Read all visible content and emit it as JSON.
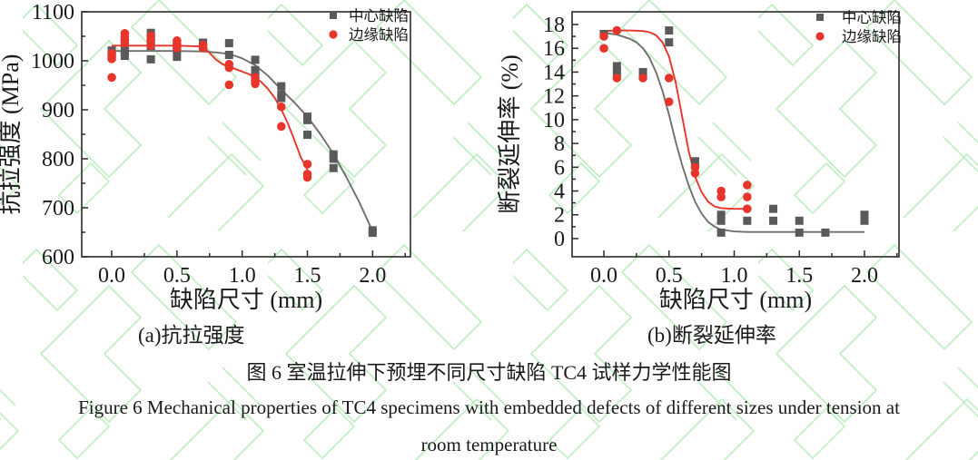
{
  "watermark": {
    "color": "#b7ecba"
  },
  "captions": {
    "sub_a": "(a)抗拉强度",
    "sub_b": "(b)断裂延伸率",
    "figure_cn": "图 6 室温拉伸下预埋不同尺寸缺陷 TC4 试样力学性能图",
    "figure_en_line1": "Figure 6 Mechanical properties of TC4 specimens with embedded defects of different sizes under tension at",
    "figure_en_line2": "room temperature"
  },
  "legend_labels": {
    "center": "中心缺陷",
    "edge": "边缘缺陷"
  },
  "colors": {
    "center": "#5a5a5a",
    "edge": "#e8352c",
    "center_curve": "#6f6f6f",
    "edge_curve": "#e8352c",
    "axis": "#2b2b2b"
  },
  "chart_data": [
    {
      "id": "a",
      "type": "scatter",
      "subtitle": "(a)抗拉强度",
      "xlabel": "缺陷尺寸 (mm)",
      "ylabel": "抗拉强度 (MPa)",
      "xlim": [
        -0.23,
        2.29
      ],
      "ylim": [
        600,
        1100
      ],
      "xticks": [
        0.0,
        0.5,
        1.0,
        1.5,
        2.0
      ],
      "xtick_labels": [
        "0.0",
        "0.5",
        "1.0",
        "1.5",
        "2.0"
      ],
      "yticks": [
        600,
        700,
        800,
        900,
        1000,
        1100
      ],
      "ytick_labels": [
        "600",
        "700",
        "800",
        "900",
        "1000",
        "1100"
      ],
      "xminor": [
        0.25,
        0.75,
        1.25,
        1.75,
        2.25
      ],
      "yminor": [
        650,
        750,
        850,
        950,
        1050
      ],
      "legend_position": "top-right",
      "series": [
        {
          "name": "中心缺陷",
          "marker": "square",
          "color": "#5a5a5a",
          "points": [
            [
              0,
              1008
            ],
            [
              0,
              1015
            ],
            [
              0,
              1021
            ],
            [
              0.1,
              1010
            ],
            [
              0.1,
              1017
            ],
            [
              0.1,
              1024
            ],
            [
              0.3,
              1003
            ],
            [
              0.3,
              1030
            ],
            [
              0.3,
              1042
            ],
            [
              0.3,
              1057
            ],
            [
              0.5,
              1008
            ],
            [
              0.5,
              1022
            ],
            [
              0.5,
              1031
            ],
            [
              0.7,
              1029
            ],
            [
              0.7,
              1037
            ],
            [
              0.9,
              1012
            ],
            [
              0.9,
              1036
            ],
            [
              1.1,
              974
            ],
            [
              1.1,
              981
            ],
            [
              1.1,
              1002
            ],
            [
              1.3,
              924
            ],
            [
              1.3,
              931
            ],
            [
              1.3,
              948
            ],
            [
              1.5,
              849
            ],
            [
              1.5,
              879
            ],
            [
              1.5,
              886
            ],
            [
              1.7,
              781
            ],
            [
              1.7,
              800
            ],
            [
              1.7,
              809
            ],
            [
              2.0,
              649
            ],
            [
              2.0,
              654
            ]
          ]
        },
        {
          "name": "边缘缺陷",
          "marker": "circle",
          "color": "#e8352c",
          "points": [
            [
              0,
              966
            ],
            [
              0,
              1004
            ],
            [
              0,
              1009
            ],
            [
              0,
              1015
            ],
            [
              0.1,
              1036
            ],
            [
              0.1,
              1043
            ],
            [
              0.1,
              1049
            ],
            [
              0.1,
              1056
            ],
            [
              0.3,
              1031
            ],
            [
              0.3,
              1043
            ],
            [
              0.3,
              1051
            ],
            [
              0.5,
              1026
            ],
            [
              0.5,
              1033
            ],
            [
              0.5,
              1041
            ],
            [
              0.7,
              1026
            ],
            [
              0.7,
              1032
            ],
            [
              0.9,
              951
            ],
            [
              0.9,
              986
            ],
            [
              0.9,
              993
            ],
            [
              1.1,
              953
            ],
            [
              1.1,
              959
            ],
            [
              1.1,
              966
            ],
            [
              1.3,
              866
            ],
            [
              1.3,
              906
            ],
            [
              1.5,
              762
            ],
            [
              1.5,
              769
            ],
            [
              1.5,
              789
            ]
          ]
        }
      ],
      "fit_curves": [
        {
          "series": "中心缺陷",
          "color": "#6f6f6f",
          "points": [
            [
              0,
              1020
            ],
            [
              0.3,
              1020
            ],
            [
              0.5,
              1020
            ],
            [
              0.7,
              1019
            ],
            [
              0.8,
              1017
            ],
            [
              0.9,
              1014
            ],
            [
              1.0,
              1005
            ],
            [
              1.1,
              991
            ],
            [
              1.2,
              969
            ],
            [
              1.3,
              941
            ],
            [
              1.4,
              915
            ],
            [
              1.5,
              886
            ],
            [
              1.6,
              850
            ],
            [
              1.7,
              810
            ],
            [
              1.8,
              762
            ],
            [
              1.9,
              710
            ],
            [
              2.0,
              652
            ]
          ]
        },
        {
          "series": "边缘缺陷",
          "color": "#e8352c",
          "points": [
            [
              0,
              1031
            ],
            [
              0.3,
              1031
            ],
            [
              0.5,
              1031
            ],
            [
              0.7,
              1029
            ],
            [
              0.75,
              1016
            ],
            [
              0.8,
              1002
            ],
            [
              0.85,
              993
            ],
            [
              0.9,
              988
            ],
            [
              0.95,
              983
            ],
            [
              1.0,
              978
            ],
            [
              1.05,
              973
            ],
            [
              1.1,
              966
            ],
            [
              1.15,
              956
            ],
            [
              1.2,
              942
            ],
            [
              1.25,
              924
            ],
            [
              1.3,
              901
            ],
            [
              1.35,
              872
            ],
            [
              1.4,
              838
            ],
            [
              1.45,
              803
            ],
            [
              1.5,
              778
            ]
          ]
        }
      ]
    },
    {
      "id": "b",
      "type": "scatter",
      "subtitle": "(b)断裂延伸率",
      "xlabel": "缺陷尺寸 (mm)",
      "ylabel": "断裂延伸率 (%)",
      "xlim": [
        -0.244,
        2.265
      ],
      "ylim": [
        -1.53,
        19.07
      ],
      "xticks": [
        0.0,
        0.5,
        1.0,
        1.5,
        2.0
      ],
      "xtick_labels": [
        "0.0",
        "0.5",
        "1.0",
        "1.5",
        "2.0"
      ],
      "yticks": [
        0,
        2,
        4,
        6,
        8,
        10,
        12,
        14,
        16,
        18
      ],
      "ytick_labels": [
        "0",
        "2",
        "4",
        "6",
        "8",
        "10",
        "12",
        "14",
        "16",
        "18"
      ],
      "xminor": [
        0.25,
        0.75,
        1.25,
        1.75,
        2.25
      ],
      "yminor": [
        1,
        3,
        5,
        7,
        9,
        11,
        13,
        15,
        17
      ],
      "legend_position": "top-right",
      "series": [
        {
          "name": "中心缺陷",
          "marker": "square",
          "color": "#5a5a5a",
          "points": [
            [
              0,
              17.2
            ],
            [
              0.1,
              14.0
            ],
            [
              0.1,
              14.5
            ],
            [
              0.3,
              14.0
            ],
            [
              0.5,
              16.5
            ],
            [
              0.5,
              17.5
            ],
            [
              0.7,
              6.5
            ],
            [
              0.9,
              0.5
            ],
            [
              0.9,
              1.5
            ],
            [
              0.9,
              2.0
            ],
            [
              1.1,
              1.5
            ],
            [
              1.3,
              1.5
            ],
            [
              1.3,
              2.5
            ],
            [
              1.5,
              0.5
            ],
            [
              1.5,
              1.5
            ],
            [
              1.7,
              0.5
            ],
            [
              2.0,
              1.5
            ],
            [
              2.0,
              2.0
            ]
          ]
        },
        {
          "name": "边缘缺陷",
          "marker": "circle",
          "color": "#e8352c",
          "points": [
            [
              0,
              16.0
            ],
            [
              0,
              17.0
            ],
            [
              0.1,
              13.5
            ],
            [
              0.1,
              17.5
            ],
            [
              0.3,
              13.5
            ],
            [
              0.5,
              11.5
            ],
            [
              0.5,
              13.5
            ],
            [
              0.7,
              5.5
            ],
            [
              0.7,
              6.0
            ],
            [
              0.9,
              3.5
            ],
            [
              0.9,
              4.0
            ],
            [
              1.1,
              2.5
            ],
            [
              1.1,
              3.5
            ],
            [
              1.1,
              4.5
            ]
          ]
        }
      ],
      "fit_curves": [
        {
          "series": "中心缺陷",
          "color": "#6f6f6f",
          "points": [
            [
              0,
              17.3
            ],
            [
              0.1,
              17.15
            ],
            [
              0.2,
              16.8
            ],
            [
              0.25,
              16.5
            ],
            [
              0.3,
              16.0
            ],
            [
              0.35,
              15.2
            ],
            [
              0.4,
              14.0
            ],
            [
              0.45,
              12.4
            ],
            [
              0.5,
              10.4
            ],
            [
              0.55,
              8.2
            ],
            [
              0.6,
              6.2
            ],
            [
              0.65,
              4.5
            ],
            [
              0.7,
              3.1
            ],
            [
              0.75,
              2.1
            ],
            [
              0.8,
              1.4
            ],
            [
              0.85,
              1.0
            ],
            [
              0.9,
              0.75
            ],
            [
              1.0,
              0.6
            ],
            [
              1.1,
              0.55
            ],
            [
              1.3,
              0.55
            ],
            [
              1.6,
              0.55
            ],
            [
              2.0,
              0.55
            ]
          ]
        },
        {
          "series": "边缘缺陷",
          "color": "#e8352c",
          "points": [
            [
              0,
              17.45
            ],
            [
              0.1,
              17.5
            ],
            [
              0.2,
              17.5
            ],
            [
              0.3,
              17.45
            ],
            [
              0.35,
              17.35
            ],
            [
              0.4,
              17.1
            ],
            [
              0.45,
              16.5
            ],
            [
              0.5,
              15.3
            ],
            [
              0.55,
              13.2
            ],
            [
              0.6,
              10.3
            ],
            [
              0.65,
              7.4
            ],
            [
              0.7,
              5.2
            ],
            [
              0.75,
              3.9
            ],
            [
              0.8,
              3.1
            ],
            [
              0.85,
              2.7
            ],
            [
              0.9,
              2.55
            ],
            [
              1.0,
              2.5
            ],
            [
              1.1,
              2.5
            ]
          ]
        }
      ]
    }
  ]
}
